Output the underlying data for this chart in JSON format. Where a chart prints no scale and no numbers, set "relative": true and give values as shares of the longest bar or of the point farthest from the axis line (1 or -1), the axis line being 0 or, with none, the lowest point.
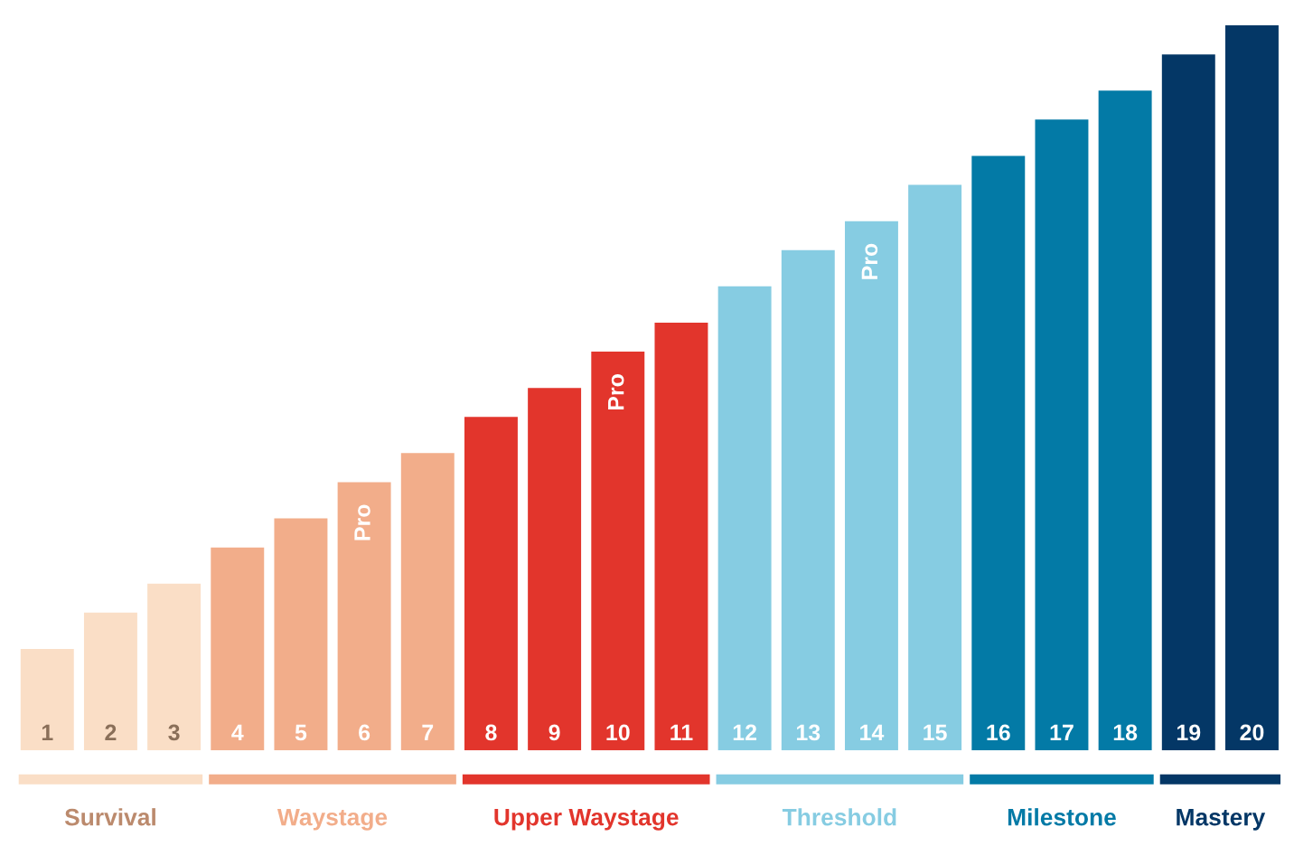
{
  "chart_data": {
    "type": "bar",
    "relative": true,
    "categories": [
      "1",
      "2",
      "3",
      "4",
      "5",
      "6",
      "7",
      "8",
      "9",
      "10",
      "11",
      "12",
      "13",
      "14",
      "15",
      "16",
      "17",
      "18",
      "19",
      "20"
    ],
    "values": [
      0.14,
      0.19,
      0.23,
      0.28,
      0.32,
      0.37,
      0.41,
      0.46,
      0.5,
      0.55,
      0.59,
      0.64,
      0.69,
      0.73,
      0.78,
      0.82,
      0.87,
      0.91,
      0.96,
      1
    ],
    "colors": [
      "#fadec6",
      "#fadec6",
      "#fadec6",
      "#f2ad8a",
      "#f2ad8a",
      "#f2ad8a",
      "#f2ad8a",
      "#e2352c",
      "#e2352c",
      "#e2352c",
      "#e2352c",
      "#86cce2",
      "#86cce2",
      "#86cce2",
      "#86cce2",
      "#037aa6",
      "#037aa6",
      "#037aa6",
      "#043766",
      "#043766"
    ],
    "annotations": [
      "Survival",
      "Waystage",
      "Upper Waystage",
      "Threshold",
      "Milestone",
      "Mastery",
      "Pro",
      "Pro",
      "Pro"
    ]
  }
}
